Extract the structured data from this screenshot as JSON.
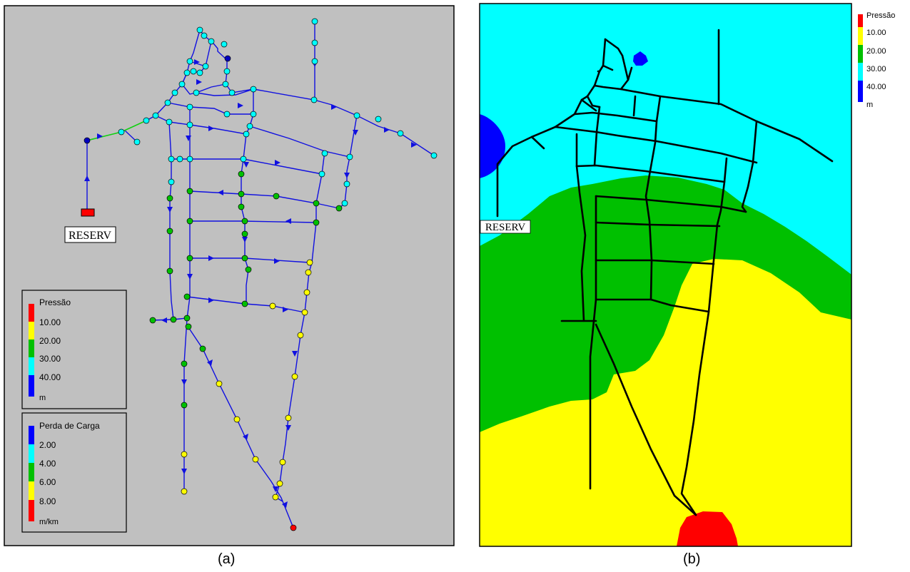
{
  "panel_a": {
    "caption": "(a)",
    "reservoir_label": "RESERV",
    "pressure_legend": {
      "title": "Pressão",
      "ticks": [
        "10.00",
        "20.00",
        "30.00",
        "40.00"
      ],
      "unit": "m",
      "colors": [
        "#ff0000",
        "#ffff00",
        "#00c000",
        "#00ffff",
        "#0000ff"
      ]
    },
    "headloss_legend": {
      "title": "Perda de Carga",
      "ticks": [
        "2.00",
        "4.00",
        "6.00",
        "8.00"
      ],
      "unit": "m/km",
      "colors": [
        "#0000ff",
        "#00ffff",
        "#00c000",
        "#ffff00",
        "#ff0000"
      ]
    }
  },
  "panel_b": {
    "caption": "(b)",
    "reservoir_label": "RESERV",
    "pressure_legend": {
      "title": "Pressão",
      "ticks": [
        "10.00",
        "20.00",
        "30.00",
        "40.00"
      ],
      "unit": "m",
      "colors": [
        "#ff0000",
        "#ffff00",
        "#00c000",
        "#00ffff",
        "#0000ff"
      ]
    }
  },
  "colors": {
    "map_background": "#c0c0c0",
    "pipe": "#1010e0",
    "red": "#ff0000",
    "yellow": "#ffff00",
    "green": "#00c000",
    "cyan": "#00ffff",
    "blue": "#0000ff"
  }
}
